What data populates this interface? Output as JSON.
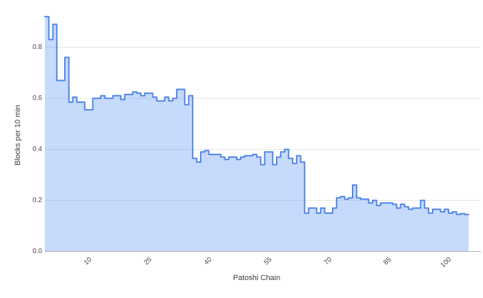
{
  "chart_data": {
    "type": "stepped-area",
    "title": "",
    "xlabel": "Patoshi Chain",
    "ylabel": "Blocks per 10 min",
    "legend": "none",
    "grid": "horizontal",
    "x_start": 1,
    "x_ticks": [
      "10",
      "25",
      "40",
      "55",
      "70",
      "85",
      "100"
    ],
    "x_tick_values": [
      10,
      25,
      40,
      55,
      70,
      85,
      100
    ],
    "y_ticks": [
      {
        "v": 0.0,
        "label": "0.0"
      },
      {
        "v": 0.2,
        "label": "0.2"
      },
      {
        "v": 0.4,
        "label": "0.4"
      },
      {
        "v": 0.6,
        "label": "0.6"
      },
      {
        "v": 0.8,
        "label": "0.8"
      }
    ],
    "ylim": [
      0,
      0.95
    ],
    "values": [
      0.92,
      0.83,
      0.89,
      0.67,
      0.67,
      0.76,
      0.585,
      0.605,
      0.585,
      0.585,
      0.555,
      0.555,
      0.6,
      0.6,
      0.61,
      0.6,
      0.6,
      0.61,
      0.61,
      0.595,
      0.615,
      0.615,
      0.625,
      0.62,
      0.61,
      0.62,
      0.62,
      0.605,
      0.59,
      0.59,
      0.605,
      0.59,
      0.6,
      0.635,
      0.635,
      0.575,
      0.61,
      0.365,
      0.35,
      0.39,
      0.395,
      0.38,
      0.38,
      0.38,
      0.37,
      0.36,
      0.37,
      0.37,
      0.36,
      0.37,
      0.375,
      0.375,
      0.38,
      0.37,
      0.34,
      0.39,
      0.39,
      0.34,
      0.37,
      0.39,
      0.4,
      0.365,
      0.345,
      0.375,
      0.35,
      0.15,
      0.17,
      0.17,
      0.15,
      0.17,
      0.15,
      0.15,
      0.17,
      0.21,
      0.215,
      0.205,
      0.21,
      0.26,
      0.21,
      0.205,
      0.205,
      0.19,
      0.2,
      0.18,
      0.19,
      0.19,
      0.19,
      0.185,
      0.17,
      0.185,
      0.175,
      0.165,
      0.17,
      0.17,
      0.2,
      0.17,
      0.15,
      0.165,
      0.165,
      0.155,
      0.165,
      0.15,
      0.155,
      0.145,
      0.148,
      0.145
    ],
    "colors": {
      "line": "#4f84ec",
      "fill": "rgba(66,133,244,0.30)",
      "grid": "#e6e6e6",
      "axis": "#b0b0b0",
      "tick_text": "#4a4a4a",
      "axis_title_text": "#3a3a3a",
      "background": "#ffffff"
    }
  }
}
